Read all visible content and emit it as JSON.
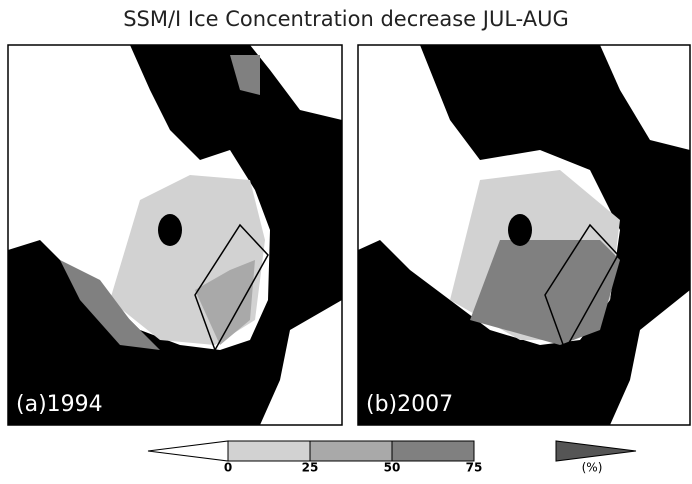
{
  "title": "SSM/I Ice Concentration decrease JUL-AUG",
  "panels": [
    {
      "label": "(a)1994"
    },
    {
      "label": "(b)2007"
    }
  ],
  "colorbar": {
    "ticks": [
      0,
      25,
      50,
      75
    ],
    "unit": "(%)",
    "colors": [
      "#ffffff",
      "#d2d2d2",
      "#a9a9a9",
      "#808080",
      "#555555"
    ]
  }
}
